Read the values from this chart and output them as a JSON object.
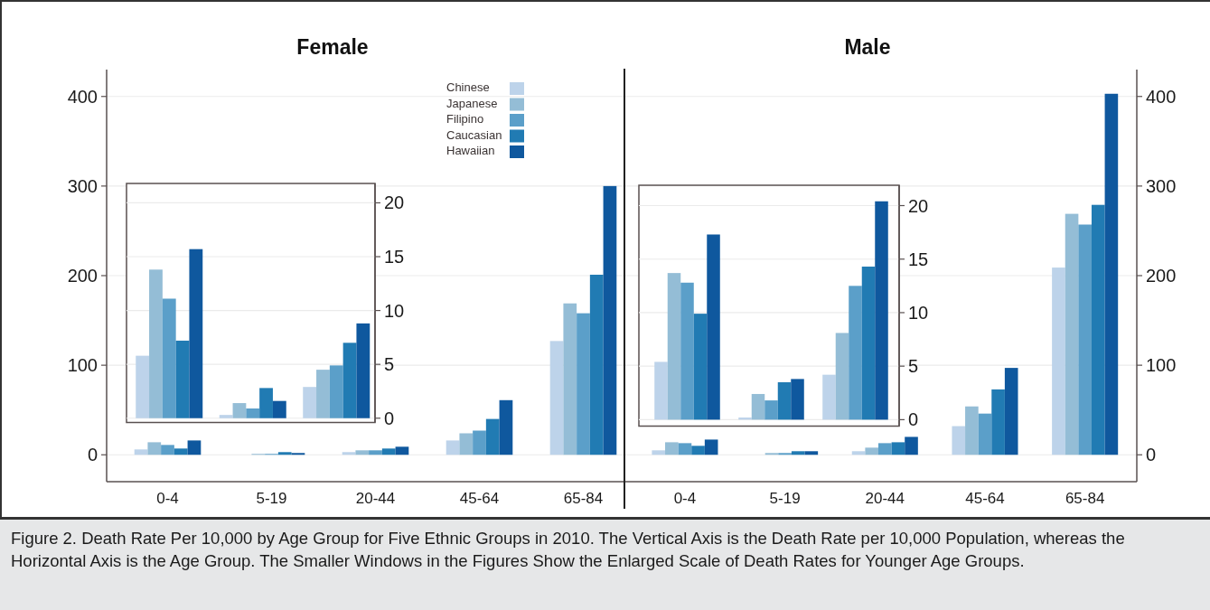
{
  "chart_data": [
    {
      "type": "bar",
      "title": "Female",
      "categories": [
        "0-4",
        "5-19",
        "20-44",
        "45-64",
        "65-84"
      ],
      "ylim": [
        -30,
        430
      ],
      "yticks": [
        0,
        100,
        200,
        300,
        400
      ],
      "grid": "y",
      "legend": "top",
      "series": [
        {
          "name": "Chinese",
          "color": "#bdd3ea",
          "values": [
            6,
            0,
            3,
            16,
            127
          ]
        },
        {
          "name": "Japanese",
          "color": "#94bdd6",
          "values": [
            14,
            1,
            5,
            24,
            169
          ]
        },
        {
          "name": "Filipino",
          "color": "#5b9fc9",
          "values": [
            11,
            1,
            5,
            27,
            158
          ]
        },
        {
          "name": "Caucasian",
          "color": "#217bb3",
          "values": [
            7,
            3,
            7,
            40,
            201
          ]
        },
        {
          "name": "Hawaiian",
          "color": "#0f589e",
          "values": [
            16,
            2,
            9,
            61,
            300
          ]
        }
      ],
      "annotations": [
        "Figure 2. Death Rate Per 10,000 by Age Group for Five Ethnic Groups in 2010. The Vertical Axis is the Death Rate per 10,000 Population, whereas the Horizontal Axis is the Age Group. The Smaller Windows in the Figures Show the Enlarged Scale of Death Rates for Younger Age Groups."
      ]
    },
    {
      "type": "bar",
      "categories": [
        null,
        null,
        null
      ],
      "ylim": [
        -0.4,
        21.8
      ],
      "yticks": [
        0,
        5,
        10,
        15,
        20
      ],
      "grid": "y",
      "series": [
        {
          "color": "#bdd3ea",
          "values": [
            5.8,
            0.3,
            2.9
          ]
        },
        {
          "color": "#94bdd6",
          "values": [
            13.8,
            1.4,
            4.5
          ]
        },
        {
          "color": "#5b9fc9",
          "values": [
            11.1,
            0.9,
            4.9
          ]
        },
        {
          "color": "#217bb3",
          "values": [
            7.2,
            2.8,
            7.0
          ]
        },
        {
          "color": "#0f589e",
          "values": [
            15.7,
            1.6,
            8.8
          ]
        }
      ]
    },
    {
      "type": "bar",
      "title": "Male",
      "categories": [
        "0-4",
        "5-19",
        "20-44",
        "45-64",
        "65-84"
      ],
      "ylim": [
        -30,
        430
      ],
      "yticks": [
        0,
        100,
        200,
        300,
        400
      ],
      "grid": "y",
      "series": [
        {
          "color": "#bdd3ea",
          "values": [
            5,
            0,
            4,
            32,
            209
          ]
        },
        {
          "color": "#94bdd6",
          "values": [
            14,
            2,
            8,
            54,
            269
          ]
        },
        {
          "color": "#5b9fc9",
          "values": [
            13,
            2,
            13,
            46,
            257
          ]
        },
        {
          "color": "#217bb3",
          "values": [
            10,
            4,
            14,
            73,
            279
          ]
        },
        {
          "color": "#0f589e",
          "values": [
            17,
            4,
            20,
            97,
            403
          ]
        }
      ]
    },
    {
      "type": "bar",
      "categories": [
        null,
        null,
        null
      ],
      "ylim": [
        -0.6,
        21.9
      ],
      "yticks": [
        0,
        5,
        10,
        15,
        20
      ],
      "grid": "y",
      "series": [
        {
          "color": "#bdd3ea",
          "values": [
            5.4,
            0.2,
            4.2
          ]
        },
        {
          "color": "#94bdd6",
          "values": [
            13.7,
            2.4,
            8.1
          ]
        },
        {
          "color": "#5b9fc9",
          "values": [
            12.8,
            1.8,
            12.5
          ]
        },
        {
          "color": "#217bb3",
          "values": [
            9.9,
            3.5,
            14.3
          ]
        },
        {
          "color": "#0f589e",
          "values": [
            17.3,
            3.8,
            20.4
          ]
        }
      ]
    }
  ]
}
